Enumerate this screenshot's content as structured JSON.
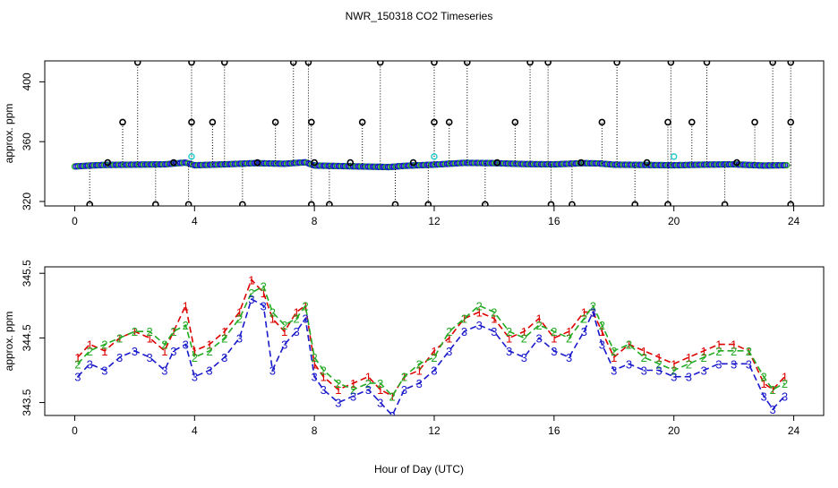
{
  "title": "NWR_150318  CO2 Timeseries",
  "xlabel": "Hour of Day (UTC)",
  "chart_data": [
    {
      "type": "scatter",
      "panel": "top",
      "ylabel": "approx. ppm",
      "xlim": [
        -1,
        25
      ],
      "ylim": [
        317,
        414
      ],
      "x_ticks": [
        0,
        4,
        8,
        12,
        16,
        20,
        24
      ],
      "y_ticks": [
        320,
        360,
        400
      ],
      "baseline": [
        [
          0,
          343.5
        ],
        [
          0.5,
          343.8
        ],
        [
          1,
          344.0
        ],
        [
          2,
          344.1
        ],
        [
          3,
          344.2
        ],
        [
          3.7,
          344.8
        ],
        [
          4,
          343.9
        ],
        [
          5,
          344.2
        ],
        [
          6,
          344.6
        ],
        [
          7,
          344.4
        ],
        [
          7.7,
          344.9
        ],
        [
          8,
          343.8
        ],
        [
          9,
          343.6
        ],
        [
          10,
          343.4
        ],
        [
          10.5,
          343.3
        ],
        [
          11,
          343.7
        ],
        [
          12,
          344.1
        ],
        [
          13,
          344.7
        ],
        [
          14,
          344.6
        ],
        [
          15,
          344.3
        ],
        [
          16,
          344.2
        ],
        [
          17,
          344.6
        ],
        [
          17.5,
          344.5
        ],
        [
          18,
          344.1
        ],
        [
          19,
          344.0
        ],
        [
          20,
          343.9
        ],
        [
          21,
          344.1
        ],
        [
          22,
          344.2
        ],
        [
          23,
          343.8
        ],
        [
          23.7,
          343.9
        ]
      ],
      "spikes_high": [
        2.1,
        3.9,
        5.0,
        7.3,
        7.8,
        10.2,
        12.0,
        13.1,
        15.2,
        15.8,
        18.1,
        19.9,
        21.1,
        23.3,
        23.9
      ],
      "spikes_mid": [
        1.6,
        3.9,
        4.6,
        6.7,
        7.9,
        9.6,
        12.0,
        12.5,
        14.7,
        17.6,
        19.8,
        20.6,
        22.7,
        23.9
      ],
      "spikes_low": [
        0.5,
        2.7,
        3.8,
        5.6,
        7.9,
        8.5,
        10.7,
        11.8,
        13.7,
        15.9,
        16.6,
        18.7,
        19.8,
        21.7,
        23.9
      ],
      "spikes_small": [
        1.1,
        3.3,
        6.1,
        8.0,
        9.2,
        11.3,
        14.1,
        16.9,
        19.1,
        22.1
      ],
      "cyan_points": [
        [
          3.9,
          350
        ],
        [
          12.0,
          350
        ],
        [
          20.0,
          350
        ]
      ],
      "high_value": 413,
      "mid_value": 373,
      "low_value": 318,
      "small_value": 346
    },
    {
      "type": "line",
      "panel": "bottom",
      "ylabel": "approx. ppm",
      "xlim": [
        -1,
        25
      ],
      "ylim": [
        343.3,
        345.6
      ],
      "x_ticks": [
        0,
        4,
        8,
        12,
        16,
        20,
        24
      ],
      "y_ticks": [
        343.5,
        344.5,
        345.5
      ],
      "series": [
        {
          "name": "1",
          "color": "#dd0000",
          "x": [
            0.1,
            0.5,
            1,
            1.5,
            2,
            2.5,
            3,
            3.3,
            3.7,
            4,
            4.5,
            5,
            5.5,
            5.9,
            6.3,
            6.6,
            7,
            7.4,
            7.7,
            8,
            8.3,
            8.8,
            9.3,
            9.8,
            10.2,
            10.6,
            11,
            11.5,
            12,
            12.5,
            13,
            13.5,
            14,
            14.5,
            15,
            15.5,
            16,
            16.5,
            17,
            17.3,
            17.6,
            18,
            18.5,
            19,
            19.5,
            20,
            20.5,
            21,
            21.5,
            22,
            22.5,
            23,
            23.3,
            23.7
          ],
          "values": [
            344.2,
            344.4,
            344.3,
            344.5,
            344.6,
            344.5,
            344.3,
            344.6,
            345.0,
            344.3,
            344.4,
            344.6,
            344.9,
            345.4,
            345.2,
            344.8,
            344.6,
            344.9,
            345.0,
            344.1,
            343.9,
            343.7,
            343.8,
            343.9,
            343.7,
            343.6,
            343.9,
            344.0,
            344.3,
            344.5,
            344.8,
            344.9,
            344.8,
            344.5,
            344.6,
            344.8,
            344.5,
            344.6,
            344.9,
            344.9,
            344.6,
            344.2,
            344.4,
            344.3,
            344.2,
            344.1,
            344.2,
            344.3,
            344.4,
            344.4,
            344.3,
            343.8,
            343.7,
            343.9
          ]
        },
        {
          "name": "2",
          "color": "#22aa22",
          "x": [
            0.1,
            0.5,
            1,
            1.5,
            2,
            2.5,
            3,
            3.3,
            3.7,
            4,
            4.5,
            5,
            5.5,
            5.9,
            6.3,
            6.6,
            7,
            7.4,
            7.7,
            8,
            8.3,
            8.8,
            9.3,
            9.8,
            10.2,
            10.6,
            11,
            11.5,
            12,
            12.5,
            13,
            13.5,
            14,
            14.5,
            15,
            15.5,
            16,
            16.5,
            17,
            17.3,
            17.6,
            18,
            18.5,
            19,
            19.5,
            20,
            20.5,
            21,
            21.5,
            22,
            22.5,
            23,
            23.3,
            23.7
          ],
          "values": [
            344.1,
            344.3,
            344.4,
            344.5,
            344.6,
            344.6,
            344.4,
            344.6,
            344.7,
            344.2,
            344.3,
            344.5,
            344.8,
            345.2,
            345.3,
            344.9,
            344.7,
            344.8,
            345.0,
            344.2,
            344.0,
            343.8,
            343.7,
            343.8,
            343.8,
            343.6,
            343.9,
            344.1,
            344.2,
            344.6,
            344.8,
            345.0,
            344.9,
            344.6,
            344.5,
            344.7,
            344.6,
            344.5,
            344.8,
            345.0,
            344.7,
            344.3,
            344.4,
            344.2,
            344.1,
            344.0,
            344.1,
            344.2,
            344.3,
            344.3,
            344.3,
            343.9,
            343.7,
            343.8
          ]
        },
        {
          "name": "3",
          "color": "#1a1acc",
          "x": [
            0.1,
            0.5,
            1,
            1.5,
            2,
            2.5,
            3,
            3.3,
            3.7,
            4,
            4.5,
            5,
            5.5,
            5.9,
            6.3,
            6.6,
            7,
            7.4,
            7.7,
            8,
            8.3,
            8.8,
            9.3,
            9.8,
            10.2,
            10.6,
            11,
            11.5,
            12,
            12.5,
            13,
            13.5,
            14,
            14.5,
            15,
            15.5,
            16,
            16.5,
            17,
            17.3,
            17.6,
            18,
            18.5,
            19,
            19.5,
            20,
            20.5,
            21,
            21.5,
            22,
            22.5,
            23,
            23.3,
            23.7
          ],
          "values": [
            343.9,
            344.1,
            344.0,
            344.2,
            344.3,
            344.2,
            344.0,
            344.3,
            344.4,
            343.9,
            344.0,
            344.2,
            344.5,
            345.1,
            345.0,
            344.0,
            344.4,
            344.6,
            344.8,
            343.9,
            343.7,
            343.5,
            343.6,
            343.7,
            343.5,
            343.3,
            343.7,
            343.8,
            344.0,
            344.3,
            344.6,
            344.7,
            344.6,
            344.3,
            344.2,
            344.5,
            344.3,
            344.2,
            344.6,
            344.9,
            344.4,
            344.0,
            344.1,
            344.0,
            344.0,
            343.9,
            343.9,
            344.0,
            344.1,
            344.1,
            344.1,
            343.6,
            343.4,
            343.6
          ]
        }
      ]
    }
  ]
}
